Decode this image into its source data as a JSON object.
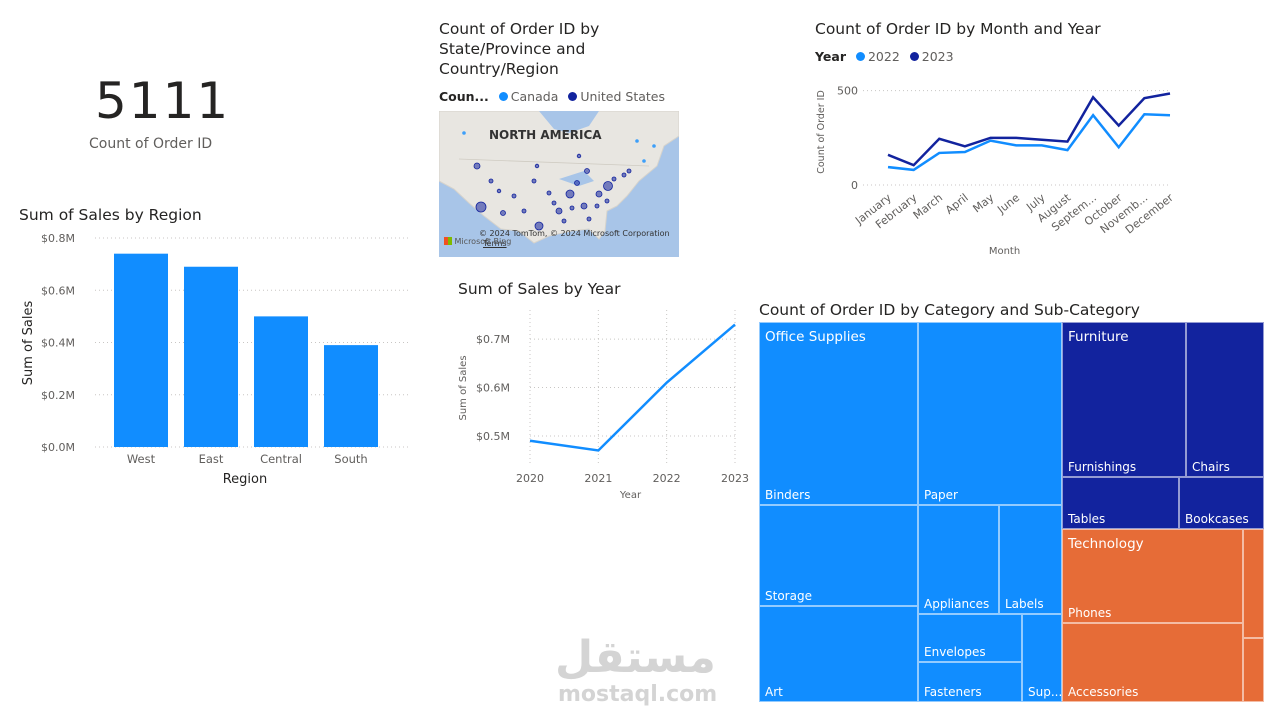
{
  "kpi": {
    "value": "5111",
    "label": "Count of Order ID"
  },
  "map": {
    "title_lines": [
      "Count of Order ID by",
      "State/Province and",
      "Country/Region"
    ],
    "legend_label": "Coun...",
    "legend_items": [
      {
        "name": "Canada",
        "color": "#118dff"
      },
      {
        "name": "United States",
        "color": "#12239e"
      }
    ],
    "region_label": "NORTH AMERICA",
    "attribution": "© 2024 TomTom, © 2024 Microsoft Corporation",
    "terms": "Terms",
    "bing": "Microsoft Bing"
  },
  "line_month": {
    "title": "Count of Order ID by Month and Year",
    "legend_label": "Year",
    "xlabel": "Month",
    "ylabel": "Count of Order ID"
  },
  "region_bar": {
    "title": "Sum of Sales by Region"
  },
  "year_line": {
    "title": "Sum of Sales by Year"
  },
  "treemap": {
    "title": "Count of Order ID by Category and Sub-Category",
    "groups": {
      "office": "Office Supplies",
      "furniture": "Furniture",
      "technology": "Technology"
    },
    "tiles": {
      "binders": "Binders",
      "paper": "Paper",
      "storage": "Storage",
      "art": "Art",
      "appliances": "Appliances",
      "labels": "Labels",
      "envelopes": "Envelopes",
      "fasteners": "Fasteners",
      "supplies": "Sup...",
      "furnishings": "Furnishings",
      "chairs": "Chairs",
      "tables": "Tables",
      "bookcases": "Bookcases",
      "phones": "Phones",
      "accessories": "Accessories"
    },
    "colors": {
      "office": "#118dff",
      "furniture": "#12239e",
      "technology": "#e66c37"
    }
  },
  "watermark": {
    "arabic": "مستقل",
    "latin": "mostaql.com"
  },
  "chart_data": [
    {
      "type": "bar",
      "title": "Sum of Sales by Region",
      "categories": [
        "West",
        "East",
        "Central",
        "South"
      ],
      "values": [
        0.74,
        0.69,
        0.5,
        0.39
      ],
      "ylabel": "Sum of Sales",
      "xlabel": "Region",
      "ylim": [
        0,
        0.8
      ],
      "yticks": [
        "$0.0M",
        "$0.2M",
        "$0.4M",
        "$0.6M",
        "$0.8M"
      ],
      "ytick_values": [
        0,
        0.2,
        0.4,
        0.6,
        0.8
      ],
      "color": "#118dff",
      "grid": true
    },
    {
      "type": "line",
      "title": "Sum of Sales by Year",
      "x": [
        "2020",
        "2021",
        "2022",
        "2023"
      ],
      "values": [
        0.49,
        0.47,
        0.61,
        0.73
      ],
      "ylabel": "Sum of Sales",
      "xlabel": "Year",
      "ylim": [
        0.44,
        0.76
      ],
      "yticks": [
        "$0.5M",
        "$0.6M",
        "$0.7M"
      ],
      "ytick_values": [
        0.5,
        0.6,
        0.7
      ],
      "color": "#118dff",
      "grid": true
    },
    {
      "type": "line",
      "title": "Count of Order ID by Month and Year",
      "categories": [
        "January",
        "February",
        "March",
        "April",
        "May",
        "June",
        "July",
        "August",
        "September",
        "October",
        "November",
        "December"
      ],
      "category_labels": [
        "January",
        "February",
        "March",
        "April",
        "May",
        "June",
        "July",
        "August",
        "Septem...",
        "October",
        "Novemb...",
        "December"
      ],
      "series": [
        {
          "name": "2022",
          "color": "#118dff",
          "values": [
            95,
            80,
            170,
            175,
            235,
            210,
            210,
            185,
            370,
            200,
            375,
            370
          ]
        },
        {
          "name": "2023",
          "color": "#12239e",
          "values": [
            160,
            105,
            245,
            205,
            250,
            250,
            240,
            230,
            465,
            315,
            460,
            485
          ]
        }
      ],
      "ylabel": "Count of Order ID",
      "xlabel": "Month",
      "ylim": [
        0,
        530
      ],
      "yticks": [
        "0",
        "500"
      ],
      "ytick_values": [
        0,
        500
      ],
      "grid": true
    },
    {
      "type": "table",
      "title": "Count of Order ID by State/Province and Country/Region",
      "legend": [
        "Canada",
        "United States"
      ]
    }
  ]
}
